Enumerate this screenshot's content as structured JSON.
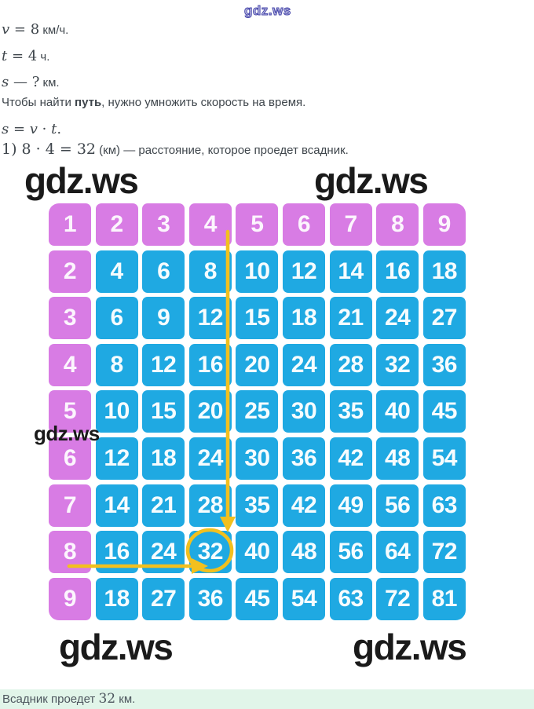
{
  "colors": {
    "header_cell": "#d87ce4",
    "product_cell": "#1fa9e2",
    "arrow": "#f2c01e",
    "footer_bg": "#e1f5e9",
    "footer_text": "#4d565e",
    "body_text": "#3f464c",
    "watermark_black": "#1a1a1a",
    "watermark_blue": "#4444aa"
  },
  "watermark": {
    "text": "gdz.ws"
  },
  "solution": {
    "given": [
      {
        "var": "v",
        "rest": " = 8",
        "unit": " км/ч."
      },
      {
        "var": "t",
        "rest": " = 4",
        "unit": " ч."
      },
      {
        "var": "s",
        "rest": " — ?",
        "unit": " км."
      }
    ],
    "rule": {
      "before": "Чтобы найти ",
      "bold": "путь",
      "after": ", нужно умножить скорость на время."
    },
    "formula": {
      "lhs": "s",
      "eq": " = ",
      "v": "v",
      "op": " · ",
      "t": "t",
      "period": "."
    },
    "computation": {
      "expr": "1) 8 · 4 = 32",
      "rest": " (км) — расстояние, которое проедет всадник."
    }
  },
  "multiplication_table": {
    "rows": [
      [
        "1",
        "2",
        "3",
        "4",
        "5",
        "6",
        "7",
        "8",
        "9"
      ],
      [
        "2",
        "4",
        "6",
        "8",
        "10",
        "12",
        "14",
        "16",
        "18"
      ],
      [
        "3",
        "6",
        "9",
        "12",
        "15",
        "18",
        "21",
        "24",
        "27"
      ],
      [
        "4",
        "8",
        "12",
        "16",
        "20",
        "24",
        "28",
        "32",
        "36"
      ],
      [
        "5",
        "10",
        "15",
        "20",
        "25",
        "30",
        "35",
        "40",
        "45"
      ],
      [
        "6",
        "12",
        "18",
        "24",
        "30",
        "36",
        "42",
        "48",
        "54"
      ],
      [
        "7",
        "14",
        "21",
        "28",
        "35",
        "42",
        "49",
        "56",
        "63"
      ],
      [
        "8",
        "16",
        "24",
        "32",
        "40",
        "48",
        "56",
        "64",
        "72"
      ],
      [
        "9",
        "18",
        "27",
        "36",
        "45",
        "54",
        "63",
        "72",
        "81"
      ]
    ],
    "highlight": {
      "factor_row": "8",
      "factor_col": "4",
      "product": "32"
    }
  },
  "footer": {
    "before": "Всадник проедет ",
    "value": "32",
    "after": " км."
  }
}
